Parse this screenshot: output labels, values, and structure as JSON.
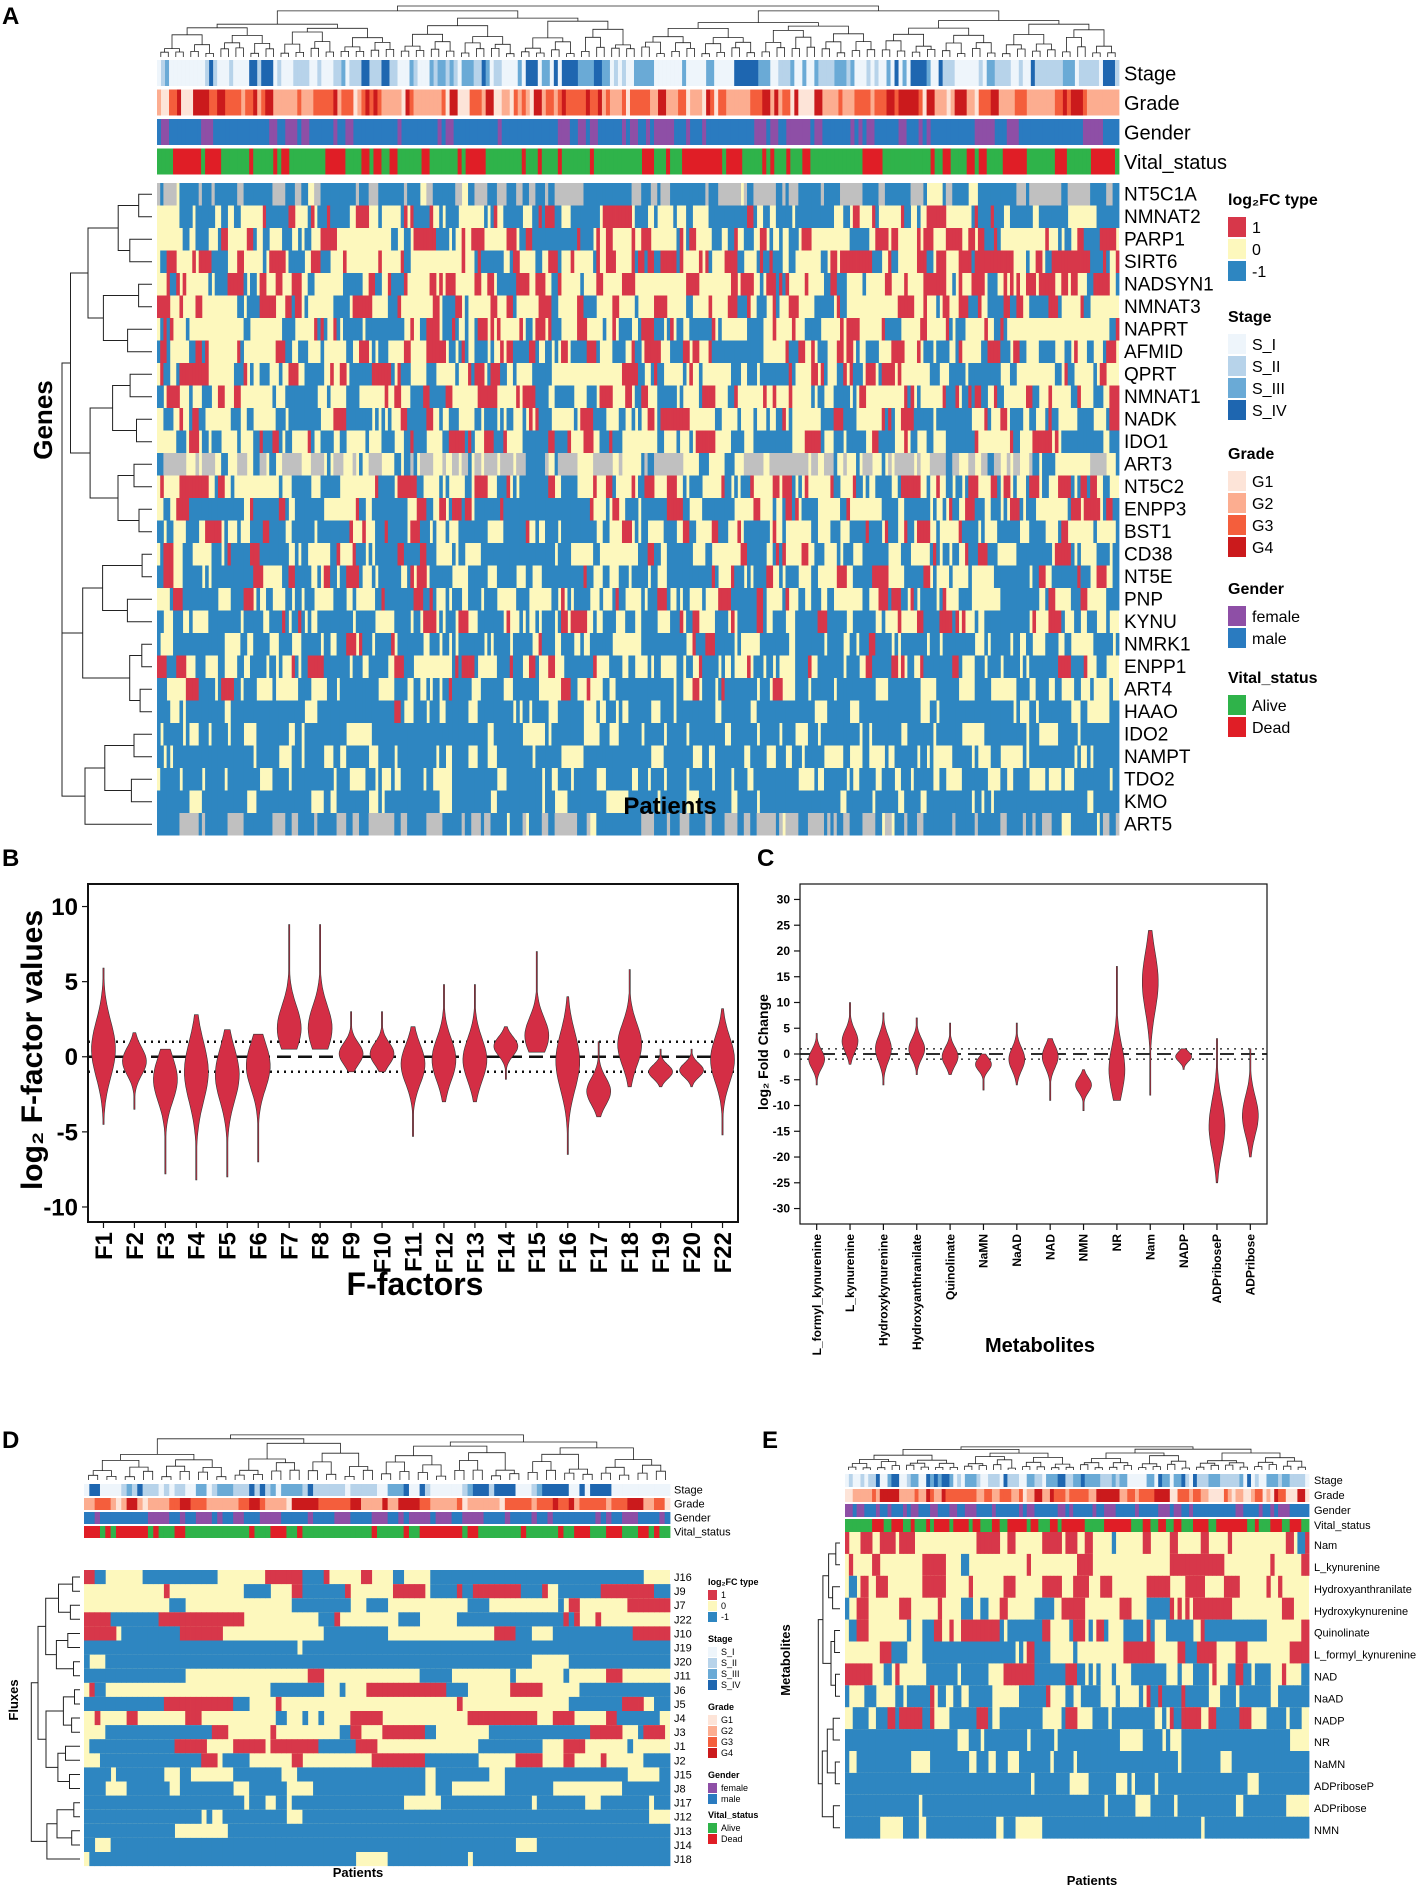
{
  "colors": {
    "up": "#d7374a",
    "neutral": "#fdf8bd",
    "down": "#2e86c1",
    "na": "#c0c0c0",
    "violin": "#d42e45",
    "stage": [
      "#eef5fb",
      "#b7d3ea",
      "#6aaad6",
      "#1e66b0"
    ],
    "grade": [
      "#fde4d8",
      "#fcad90",
      "#f45e3c",
      "#cb1a1c"
    ],
    "gender": [
      "#8e4fa6",
      "#2a7bc0"
    ],
    "vital": [
      "#2fb34a",
      "#e01e26"
    ]
  },
  "panel_a": {
    "label": "A",
    "annotation_tracks": [
      "Stage",
      "Grade",
      "Gender",
      "Vital_status"
    ],
    "genes": [
      "NT5C1A",
      "NMNAT2",
      "PARP1",
      "SIRT6",
      "NADSYN1",
      "NMNAT3",
      "NAPRT",
      "AFMID",
      "QPRT",
      "NMNAT1",
      "NADK",
      "IDO1",
      "ART3",
      "NT5C2",
      "ENPP3",
      "BST1",
      "CD38",
      "NT5E",
      "PNP",
      "KYNU",
      "NMRK1",
      "ENPP1",
      "ART4",
      "HAAO",
      "IDO2",
      "NAMPT",
      "TDO2",
      "KMO",
      "ART5"
    ],
    "gene_levels": [
      1.2,
      0.5,
      0.3,
      0.3,
      0.2,
      0.3,
      0.4,
      0.4,
      0.4,
      0.35,
      0.5,
      0.55,
      0.5,
      0.35,
      0.5,
      0.55,
      0.6,
      0.6,
      0.55,
      0.6,
      0.65,
      0.6,
      0.7,
      0.75,
      0.8,
      0.85,
      0.8,
      0.85,
      1.3
    ],
    "xlabel": "Patients",
    "ylabel": "Genes",
    "legend": {
      "log2fc": {
        "title": "log₂FC type",
        "items": [
          "1",
          "0",
          "-1"
        ]
      },
      "stage": {
        "title": "Stage",
        "items": [
          "S_I",
          "S_II",
          "S_III",
          "S_IV"
        ]
      },
      "grade": {
        "title": "Grade",
        "items": [
          "G1",
          "G2",
          "G3",
          "G4"
        ]
      },
      "gender": {
        "title": "Gender",
        "items": [
          "female",
          "male"
        ]
      },
      "vital": {
        "title": "Vital_status",
        "items": [
          "Alive",
          "Dead"
        ]
      }
    }
  },
  "chart_data": [
    {
      "panel": "B",
      "type": "violin",
      "xlabel": "F-factors",
      "ylabel": "log₂ F-factor values",
      "ylim": [
        -11,
        11.5
      ],
      "yticks": [
        10,
        5,
        0,
        -5,
        -10
      ],
      "reference_lines": {
        "dashed": 0,
        "dotted": [
          1,
          -1
        ]
      },
      "categories": [
        "F1",
        "F2",
        "F3",
        "F4",
        "F5",
        "F6",
        "F7",
        "F8",
        "F9",
        "F10",
        "F11",
        "F12",
        "F13",
        "F14",
        "F15",
        "F16",
        "F17",
        "F18",
        "F19",
        "F20",
        "F22"
      ],
      "medians": [
        0.5,
        -0.3,
        -1.5,
        -1.0,
        -1.2,
        -0.6,
        1.9,
        1.9,
        0.2,
        0.2,
        -0.5,
        -0.2,
        -0.2,
        0.7,
        1.4,
        -0.3,
        -2.3,
        0.8,
        -1.0,
        -0.9,
        -0.2
      ],
      "mins": [
        -4.5,
        -3.5,
        -7.8,
        -8.2,
        -8.0,
        -7.0,
        0.5,
        0.5,
        -1.0,
        -1.0,
        -5.3,
        -3.0,
        -3.0,
        -1.5,
        0.3,
        -6.5,
        -4.0,
        -2.0,
        -2.0,
        -2.0,
        -5.2
      ],
      "maxs": [
        5.9,
        1.6,
        0.5,
        2.8,
        1.8,
        1.5,
        8.8,
        8.8,
        3.0,
        3.0,
        2.0,
        4.8,
        4.8,
        2.0,
        7.0,
        4.0,
        1.0,
        5.8,
        0.5,
        0.5,
        3.2
      ]
    },
    {
      "panel": "C",
      "type": "violin",
      "xlabel": "Metabolites",
      "ylabel": "log₂ Fold Change",
      "ylim": [
        -33,
        33
      ],
      "yticks": [
        30,
        25,
        20,
        15,
        10,
        5,
        0,
        -5,
        -10,
        -15,
        -20,
        -25,
        -30
      ],
      "reference_lines": {
        "dashed": 0,
        "dotted": [
          1,
          -1
        ]
      },
      "categories": [
        "L_formyl_kynurenine",
        "L_kynurenine",
        "Hydroxykynurenine",
        "Hydroxyanthranilate",
        "Quinolinate",
        "NaMN",
        "NaAD",
        "NAD",
        "NMN",
        "NR",
        "Nam",
        "NADP",
        "ADPriboseP",
        "ADPribose"
      ],
      "medians": [
        -1,
        2.5,
        1,
        1,
        -0.5,
        -2,
        -1,
        -0.5,
        -6,
        -3,
        14,
        -0.5,
        -14,
        -12
      ],
      "mins": [
        -6,
        -2,
        -6,
        -4,
        -4,
        -7,
        -6,
        -9,
        -11,
        -9,
        -8,
        -3,
        -25,
        -20
      ],
      "maxs": [
        4,
        10,
        8,
        7,
        6,
        0,
        6,
        3,
        -3,
        17,
        24,
        1,
        3,
        1
      ]
    }
  ],
  "panel_b": {
    "label": "B"
  },
  "panel_c": {
    "label": "C"
  },
  "panel_d": {
    "label": "D",
    "rows": [
      "J16",
      "J9",
      "J7",
      "J22",
      "J10",
      "J19",
      "J20",
      "J11",
      "J6",
      "J5",
      "J4",
      "J3",
      "J1",
      "J2",
      "J15",
      "J8",
      "J17",
      "J12",
      "J13",
      "J14",
      "J18"
    ],
    "row_levels": [
      0.3,
      0.25,
      0.3,
      0.3,
      0.45,
      1.2,
      1.2,
      0.5,
      0.3,
      0.3,
      0.3,
      0.3,
      0.3,
      0.3,
      0.7,
      0.8,
      0.9,
      1.0,
      1.0,
      1.0,
      1.0
    ],
    "annotation_tracks": [
      "Stage",
      "Grade",
      "Gender",
      "Vital_status"
    ],
    "xlabel": "Patients",
    "ylabel": "Fluxes"
  },
  "panel_e": {
    "label": "E",
    "rows": [
      "Nam",
      "L_kynurenine",
      "Hydroxyanthranilate",
      "Hydroxykynurenine",
      "Quinolinate",
      "L_formyl_kynurenine",
      "NAD",
      "NaAD",
      "NADP",
      "NR",
      "NaMN",
      "ADPriboseP",
      "ADPribose",
      "NMN"
    ],
    "row_levels": [
      0.05,
      0.15,
      0.2,
      0.25,
      0.35,
      0.4,
      0.5,
      0.6,
      0.55,
      0.85,
      0.9,
      1.0,
      1.0,
      1.0
    ],
    "annotation_tracks": [
      "Stage",
      "Grade",
      "Gender",
      "Vital_status"
    ],
    "xlabel": "Patients",
    "ylabel": "Metabolites"
  }
}
